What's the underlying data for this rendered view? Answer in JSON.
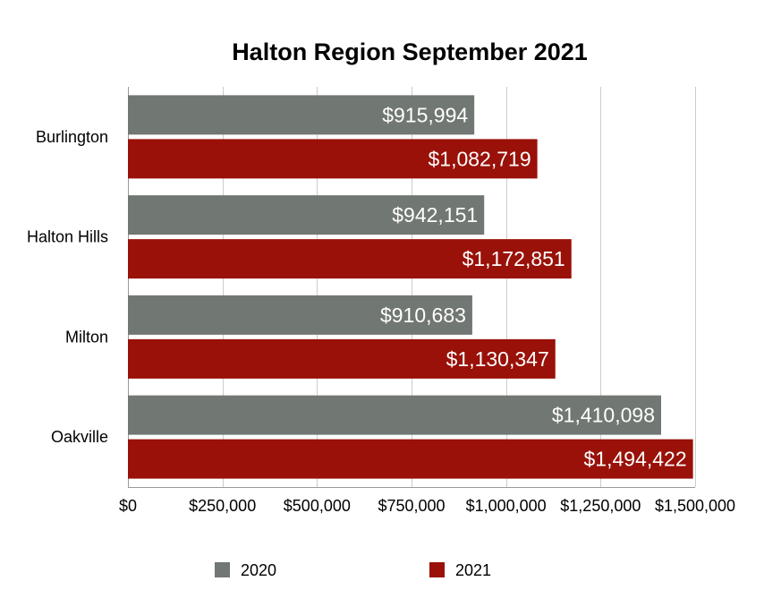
{
  "chart_data": {
    "type": "bar",
    "orientation": "horizontal",
    "title": "Halton Region September 2021",
    "categories": [
      "Burlington",
      "Halton Hills",
      "Milton",
      "Oakville"
    ],
    "series": [
      {
        "name": "2020",
        "color": "#717773",
        "values": [
          915994,
          942151,
          910683,
          1410098
        ],
        "labels": [
          "$915,994",
          "$942,151",
          "$910,683",
          "$1,410,098"
        ]
      },
      {
        "name": "2021",
        "color": "#991108",
        "values": [
          1082719,
          1172851,
          1130347,
          1494422
        ],
        "labels": [
          "$1,082,719",
          "$1,172,851",
          "$1,130,347",
          "$1,494,422"
        ]
      }
    ],
    "xlim": [
      0,
      1500000
    ],
    "xticks": [
      0,
      250000,
      500000,
      750000,
      1000000,
      1250000,
      1500000
    ],
    "xtick_labels": [
      "$0",
      "$250,000",
      "$500,000",
      "$750,000",
      "$1,000,000",
      "$1,250,000",
      "$1,500,000"
    ],
    "grid": true,
    "legend_position": "bottom"
  }
}
